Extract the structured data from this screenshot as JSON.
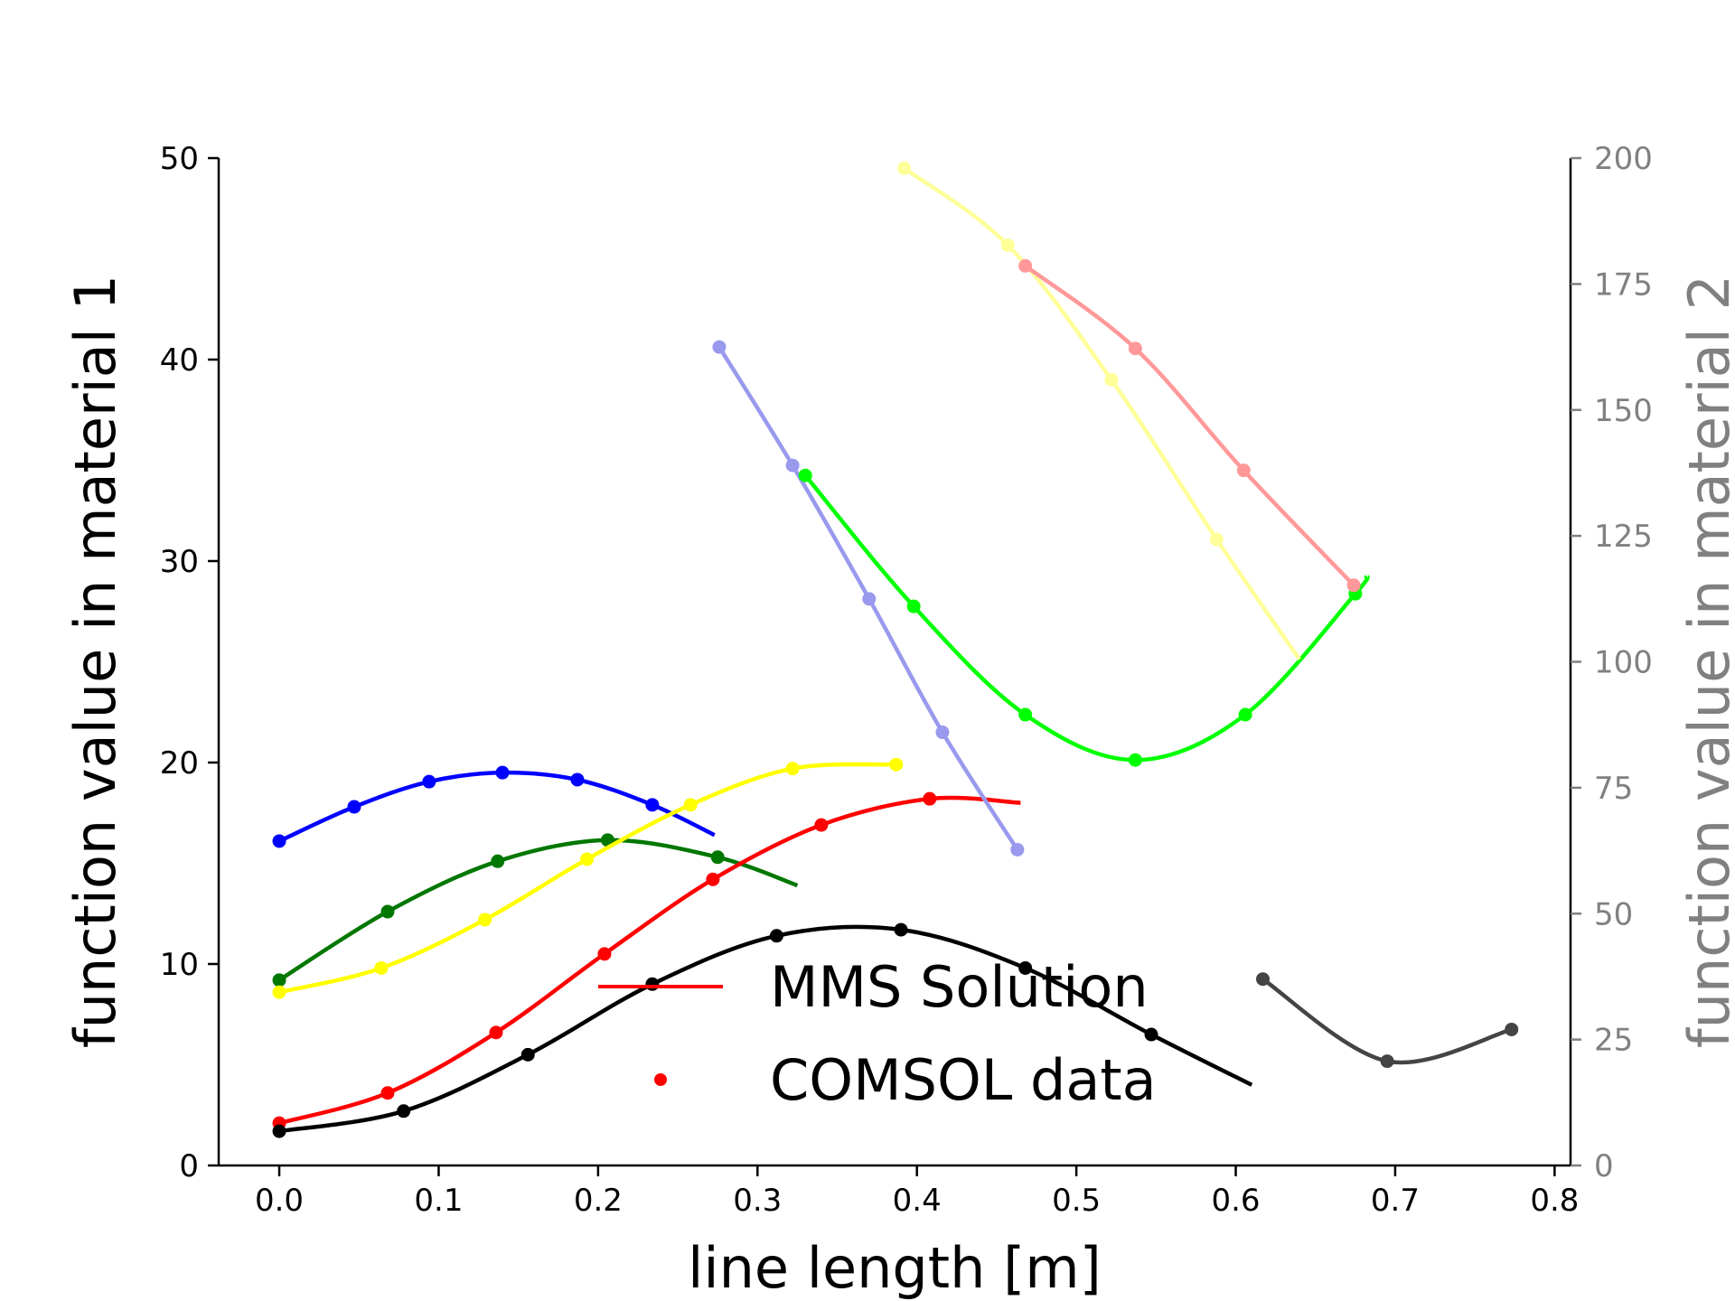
{
  "chart_data": {
    "type": "line",
    "title": "",
    "xlabel": "line length [m]",
    "ylabel": "function value in material 1",
    "ylabel_right": "function value in material 2",
    "xlim": [
      -0.038,
      0.81
    ],
    "ylim": [
      0,
      50
    ],
    "ylim_right": [
      0,
      200
    ],
    "x_ticks": [
      0.0,
      0.1,
      0.2,
      0.3,
      0.4,
      0.5,
      0.6,
      0.7,
      0.8
    ],
    "y_ticks": [
      0,
      10,
      20,
      30,
      40,
      50
    ],
    "y_ticks_right": [
      0,
      25,
      50,
      75,
      100,
      125,
      150,
      175,
      200
    ],
    "grid": false,
    "legend": {
      "placement": "lower-center",
      "entries": [
        {
          "label": "MMS Solution",
          "marker": "line",
          "color": "#ff0000"
        },
        {
          "label": "COMSOL data",
          "marker": "dot",
          "color": "#ff0000"
        }
      ]
    },
    "series": [
      {
        "color": "#0000ff",
        "axis": "left",
        "curve": [
          [
            0.0,
            16.1
          ],
          [
            0.047,
            17.8
          ],
          [
            0.094,
            19.05
          ],
          [
            0.14,
            19.5
          ],
          [
            0.187,
            19.15
          ],
          [
            0.234,
            17.9
          ],
          [
            0.273,
            16.4
          ]
        ],
        "points": [
          [
            0.0,
            16.1
          ],
          [
            0.047,
            17.8
          ],
          [
            0.094,
            19.05
          ],
          [
            0.14,
            19.5
          ],
          [
            0.187,
            19.15
          ],
          [
            0.234,
            17.9
          ]
        ]
      },
      {
        "color": "#007700",
        "axis": "left",
        "curve": [
          [
            0.0,
            9.2
          ],
          [
            0.068,
            12.6
          ],
          [
            0.137,
            15.1
          ],
          [
            0.206,
            16.15
          ],
          [
            0.275,
            15.3
          ],
          [
            0.325,
            13.9
          ]
        ],
        "points": [
          [
            0.0,
            9.2
          ],
          [
            0.068,
            12.6
          ],
          [
            0.137,
            15.1
          ],
          [
            0.206,
            16.15
          ],
          [
            0.275,
            15.3
          ]
        ]
      },
      {
        "color": "#ffff00",
        "axis": "left",
        "curve": [
          [
            0.0,
            8.6
          ],
          [
            0.064,
            9.8
          ],
          [
            0.129,
            12.2
          ],
          [
            0.193,
            15.2
          ],
          [
            0.258,
            17.9
          ],
          [
            0.322,
            19.7
          ],
          [
            0.387,
            19.9
          ]
        ],
        "points": [
          [
            0.0,
            8.6
          ],
          [
            0.064,
            9.8
          ],
          [
            0.129,
            12.2
          ],
          [
            0.193,
            15.2
          ],
          [
            0.258,
            17.9
          ],
          [
            0.322,
            19.7
          ],
          [
            0.387,
            19.9
          ]
        ]
      },
      {
        "color": "#ff0000",
        "axis": "left",
        "curve": [
          [
            0.0,
            2.1
          ],
          [
            0.068,
            3.6
          ],
          [
            0.136,
            6.6
          ],
          [
            0.204,
            10.5
          ],
          [
            0.272,
            14.2
          ],
          [
            0.34,
            16.9
          ],
          [
            0.408,
            18.2
          ],
          [
            0.465,
            18.0
          ]
        ],
        "points": [
          [
            0.0,
            2.1
          ],
          [
            0.068,
            3.6
          ],
          [
            0.136,
            6.6
          ],
          [
            0.204,
            10.5
          ],
          [
            0.272,
            14.2
          ],
          [
            0.34,
            16.9
          ],
          [
            0.408,
            18.2
          ]
        ]
      },
      {
        "color": "#000000",
        "axis": "left",
        "curve": [
          [
            0.0,
            1.7
          ],
          [
            0.078,
            2.7
          ],
          [
            0.156,
            5.5
          ],
          [
            0.234,
            9.0
          ],
          [
            0.312,
            11.4
          ],
          [
            0.39,
            11.7
          ],
          [
            0.468,
            9.8
          ],
          [
            0.547,
            6.5
          ],
          [
            0.61,
            4.0
          ]
        ],
        "points": [
          [
            0.0,
            1.7
          ],
          [
            0.078,
            2.7
          ],
          [
            0.156,
            5.5
          ],
          [
            0.234,
            9.0
          ],
          [
            0.312,
            11.4
          ],
          [
            0.39,
            11.7
          ],
          [
            0.468,
            9.8
          ],
          [
            0.547,
            6.5
          ]
        ]
      },
      {
        "color": "#9999ee",
        "axis": "right",
        "curve": [
          [
            0.276,
            162.5
          ],
          [
            0.322,
            139.0
          ],
          [
            0.37,
            112.5
          ],
          [
            0.416,
            86.0
          ],
          [
            0.463,
            62.7
          ]
        ],
        "points": [
          [
            0.276,
            162.5
          ],
          [
            0.322,
            139.0
          ],
          [
            0.37,
            112.5
          ],
          [
            0.416,
            86.0
          ],
          [
            0.463,
            62.7
          ]
        ]
      },
      {
        "color": "#00ff00",
        "axis": "right",
        "curve": [
          [
            0.33,
            137.0
          ],
          [
            0.398,
            111.0
          ],
          [
            0.468,
            89.5
          ],
          [
            0.537,
            80.5
          ],
          [
            0.606,
            89.5
          ],
          [
            0.675,
            113.5
          ],
          [
            0.682,
            117.0
          ]
        ],
        "points": [
          [
            0.33,
            137.0
          ],
          [
            0.398,
            111.0
          ],
          [
            0.468,
            89.5
          ],
          [
            0.537,
            80.5
          ],
          [
            0.606,
            89.5
          ],
          [
            0.675,
            113.5
          ]
        ]
      },
      {
        "color": "#ffff99",
        "axis": "right",
        "curve": [
          [
            0.392,
            198.0
          ],
          [
            0.457,
            182.7
          ],
          [
            0.522,
            156.0
          ],
          [
            0.588,
            124.3
          ],
          [
            0.64,
            100.5
          ]
        ],
        "points": [
          [
            0.392,
            198.0
          ],
          [
            0.457,
            182.7
          ],
          [
            0.522,
            156.0
          ],
          [
            0.588,
            124.3
          ]
        ]
      },
      {
        "color": "#ff9999",
        "axis": "right",
        "curve": [
          [
            0.468,
            178.6
          ],
          [
            0.537,
            162.2
          ],
          [
            0.605,
            138.0
          ],
          [
            0.674,
            115.2
          ]
        ],
        "points": [
          [
            0.468,
            178.6
          ],
          [
            0.537,
            162.2
          ],
          [
            0.605,
            138.0
          ],
          [
            0.674,
            115.2
          ]
        ]
      },
      {
        "color": "#444444",
        "axis": "right",
        "curve": [
          [
            0.617,
            37.0
          ],
          [
            0.695,
            20.7
          ],
          [
            0.773,
            27.0
          ]
        ],
        "points": [
          [
            0.617,
            37.0
          ],
          [
            0.695,
            20.7
          ],
          [
            0.773,
            27.0
          ]
        ]
      }
    ]
  }
}
